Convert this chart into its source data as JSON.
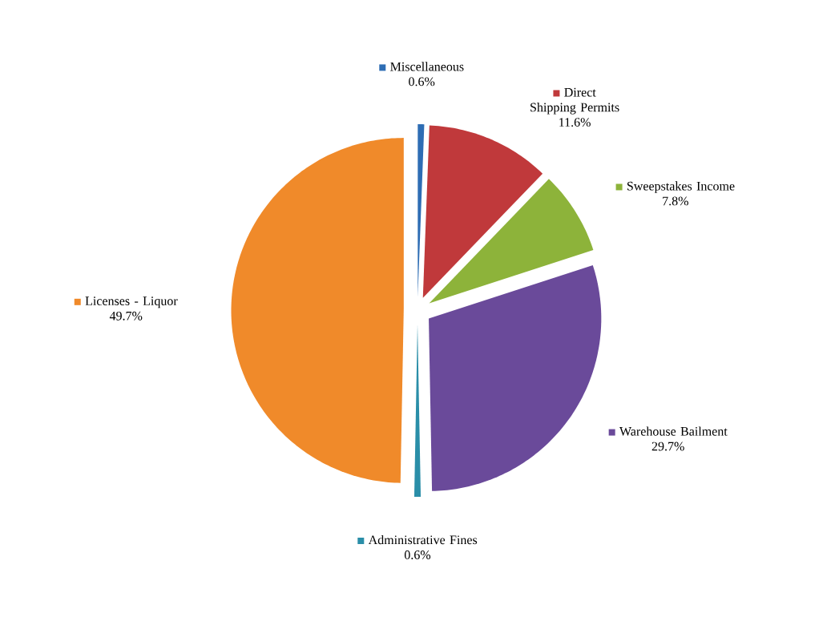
{
  "chart_data": {
    "type": "pie",
    "categories": [
      "Miscellaneous",
      "Direct Shipping Permits",
      "Sweepstakes Income",
      "Warehouse Bailment",
      "Administrative Fines",
      "Licenses - Liquor"
    ],
    "values": [
      0.6,
      11.6,
      7.8,
      29.7,
      0.6,
      49.7
    ],
    "value_labels": [
      "0.6%",
      "11.6%",
      "7.8%",
      "29.7%",
      "0.6%",
      "49.7%"
    ],
    "legend": "top left",
    "colors": [
      "#2e6db4",
      "#c0393b",
      "#8db33a",
      "#6a4a9a",
      "#2a8ea8",
      "#f08a2a"
    ]
  }
}
